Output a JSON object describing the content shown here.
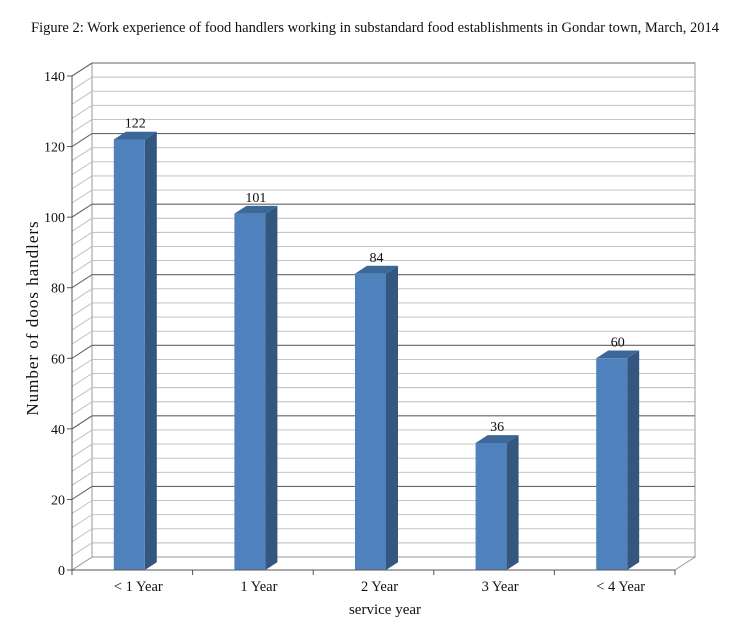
{
  "figure_title": "Figure 2: Work experience of food handlers working in substandard food establishments in Gondar town, March, 2014",
  "colors": {
    "bar_front": "#4f81bd",
    "bar_side": "#34577f",
    "bar_top": "#3e6799"
  },
  "chart_data": {
    "type": "bar",
    "title": "Figure 2: Work experience of food handlers working in substandard food establishments in Gondar town, March, 2014",
    "categories": [
      "< 1 Year",
      "1 Year",
      "2 Year",
      "3 Year",
      "< 4 Year"
    ],
    "values": [
      122,
      101,
      84,
      36,
      60
    ],
    "data_labels": [
      "122",
      "101",
      "84",
      "36",
      "60"
    ],
    "xlabel": "service year",
    "ylabel": "Number of doos handlers",
    "ylim": [
      0,
      140
    ],
    "yticks": [
      0,
      20,
      40,
      60,
      80,
      100,
      120,
      140
    ],
    "grid": true,
    "legend": false,
    "style": "3d-column"
  }
}
